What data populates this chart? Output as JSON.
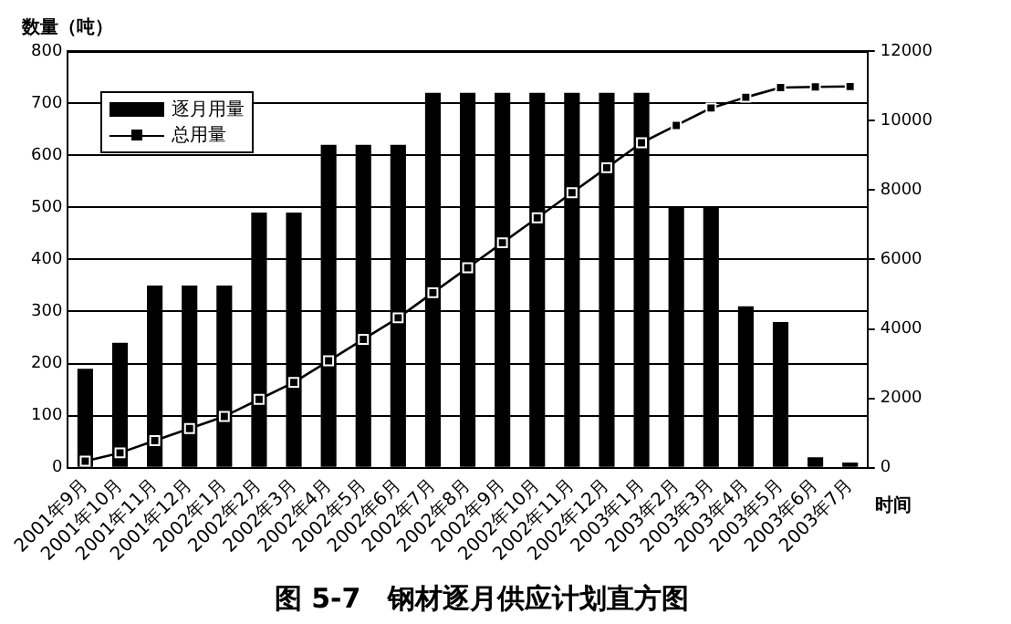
{
  "chart_data": {
    "type": "bar",
    "title": "图 5-7　钢材逐月供应计划直方图",
    "ylabel": "数量（吨）",
    "xlabel": "时间",
    "categories": [
      "2001年9月",
      "2001年10月",
      "2001年11月",
      "2001年12月",
      "2002年1月",
      "2002年2月",
      "2002年3月",
      "2002年4月",
      "2002年5月",
      "2002年6月",
      "2002年7月",
      "2002年8月",
      "2002年9月",
      "2002年10月",
      "2002年11月",
      "2002年12月",
      "2003年1月",
      "2003年2月",
      "2003年3月",
      "2003年4月",
      "2003年5月",
      "2003年6月",
      "2003年7月"
    ],
    "series": [
      {
        "name": "逐月用量",
        "color": "#000000",
        "values": [
          190,
          240,
          350,
          350,
          350,
          490,
          490,
          620,
          620,
          620,
          720,
          720,
          720,
          720,
          720,
          720,
          720,
          500,
          500,
          310,
          280,
          20,
          10
        ]
      },
      {
        "name": "总用量",
        "type": "line",
        "axis": "y2",
        "color": "#000000",
        "marker": "square",
        "values": [
          190,
          430,
          780,
          1130,
          1480,
          1970,
          2460,
          3080,
          3700,
          4320,
          5040,
          5760,
          6480,
          7200,
          7920,
          8640,
          9360,
          9860,
          10360,
          10670,
          10950,
          10970,
          10980
        ]
      }
    ],
    "ylim": [
      0,
      800
    ],
    "yticks": [
      0,
      100,
      200,
      300,
      400,
      500,
      600,
      700,
      800
    ],
    "y2lim": [
      0,
      12000
    ],
    "y2ticks": [
      0,
      2000,
      4000,
      6000,
      8000,
      10000,
      12000
    ],
    "grid": "y",
    "legend": "top left"
  }
}
